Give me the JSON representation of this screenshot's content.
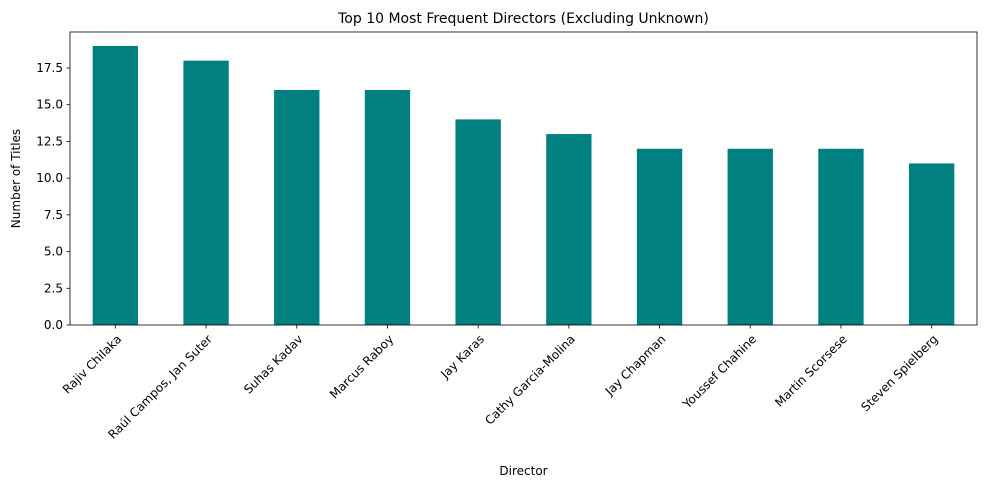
{
  "chart_data": {
    "type": "bar",
    "title": "Top 10 Most Frequent Directors (Excluding Unknown)",
    "xlabel": "Director",
    "ylabel": "Number of Titles",
    "categories": [
      "Rajiv Chilaka",
      "Raúl Campos, Jan Suter",
      "Suhas Kadav",
      "Marcus Raboy",
      "Jay Karas",
      "Cathy Garcia-Molina",
      "Jay Chapman",
      "Youssef Chahine",
      "Martin Scorsese",
      "Steven Spielberg"
    ],
    "values": [
      19,
      18,
      16,
      16,
      14,
      13,
      12,
      12,
      12,
      11
    ],
    "ylim": [
      0,
      19.95
    ],
    "yticks": [
      0.0,
      2.5,
      5.0,
      7.5,
      10.0,
      12.5,
      15.0,
      17.5
    ],
    "ytick_labels": [
      "0.0",
      "2.5",
      "5.0",
      "7.5",
      "10.0",
      "12.5",
      "15.0",
      "17.5"
    ],
    "bar_color": "#008080",
    "grid": false,
    "legend": "none"
  }
}
